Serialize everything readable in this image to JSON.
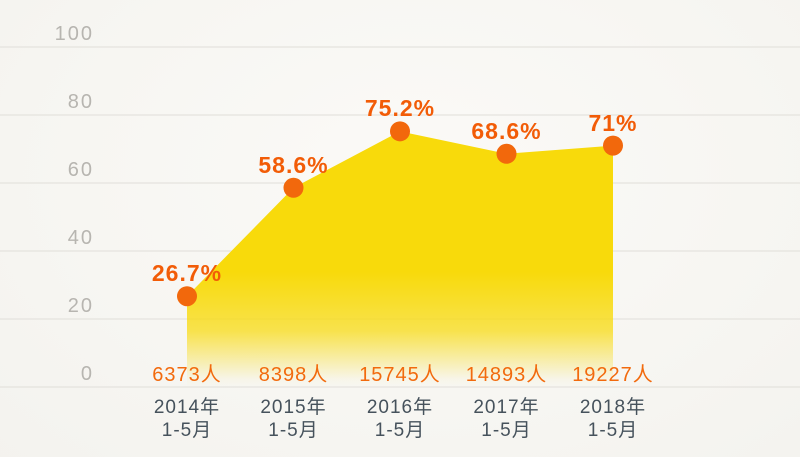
{
  "chart_data": {
    "type": "area",
    "title": "",
    "xlabel": "",
    "ylabel": "",
    "categories": [
      "2014年 1-5月",
      "2015年 1-5月",
      "2016年 1-5月",
      "2017年 1-5月",
      "2018年 1-5月"
    ],
    "x_tick_lines": [
      [
        "2014年",
        "1-5月"
      ],
      [
        "2015年",
        "1-5月"
      ],
      [
        "2016年",
        "1-5月"
      ],
      [
        "2017年",
        "1-5月"
      ],
      [
        "2018年",
        "1-5月"
      ]
    ],
    "series": [
      {
        "name": "percentage",
        "values": [
          26.7,
          58.6,
          75.2,
          68.6,
          71
        ],
        "labels": [
          "26.7%",
          "58.6%",
          "75.2%",
          "68.6%",
          "71%"
        ]
      },
      {
        "name": "count",
        "values": [
          6373,
          8398,
          15745,
          14893,
          19227
        ],
        "labels": [
          "6373人",
          "8398人",
          "15745人",
          "14893人",
          "19227人"
        ]
      }
    ],
    "ylim": [
      0,
      100
    ],
    "yticks": [
      0,
      20,
      40,
      60,
      80,
      100
    ],
    "grid": "horizontal",
    "legend": "none",
    "colors": {
      "area_fill": "#f8da0b",
      "point": "#f2680c",
      "percent_label": "#f25c07",
      "count_label": "#f26a0d",
      "x_tick_label": "#46525c",
      "y_tick_label": "#b7b5b0",
      "gridline": "#e0ded9",
      "background": "#f7f6f3"
    }
  }
}
